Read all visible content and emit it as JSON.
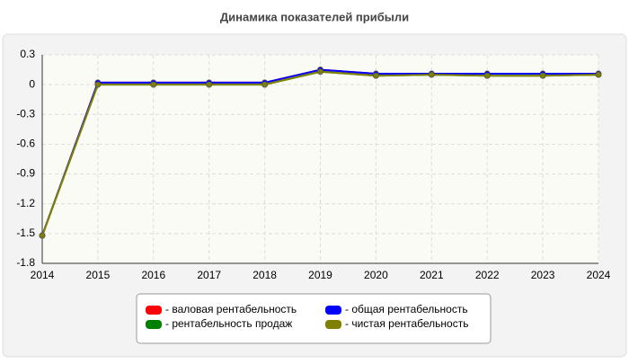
{
  "chart_data": {
    "type": "line",
    "title": "Динамика показателей прибыли",
    "x": [
      2014,
      2015,
      2016,
      2017,
      2018,
      2019,
      2020,
      2021,
      2022,
      2023,
      2024
    ],
    "xlim": [
      2014,
      2024
    ],
    "xticks": [
      2014,
      2015,
      2016,
      2017,
      2018,
      2019,
      2020,
      2021,
      2022,
      2023,
      2024
    ],
    "ylim": [
      -1.8,
      0.3
    ],
    "yticks": [
      0.3,
      0,
      -0.3,
      -0.6,
      -0.9,
      -1.2,
      -1.5,
      -1.8
    ],
    "grid": true,
    "series": [
      {
        "name": "- валовая рентабельность",
        "color": "#ff0000",
        "values": [
          -1.52,
          0.02,
          0.02,
          0.02,
          0.02,
          0.15,
          0.11,
          0.11,
          0.11,
          0.11,
          0.11
        ]
      },
      {
        "name": "- рентабельность продаж",
        "color": "#008000",
        "values": [
          -1.52,
          0.0,
          0.0,
          0.0,
          0.0,
          0.13,
          0.09,
          0.1,
          0.09,
          0.09,
          0.1
        ]
      },
      {
        "name": "- общая рентабельность",
        "color": "#0000ff",
        "values": [
          -1.52,
          0.02,
          0.02,
          0.02,
          0.02,
          0.15,
          0.11,
          0.11,
          0.11,
          0.11,
          0.11
        ]
      },
      {
        "name": "- чистая рентабельность",
        "color": "#808000",
        "values": [
          -1.52,
          0.0,
          0.0,
          0.0,
          0.0,
          0.13,
          0.09,
          0.1,
          0.09,
          0.09,
          0.1
        ]
      }
    ]
  }
}
